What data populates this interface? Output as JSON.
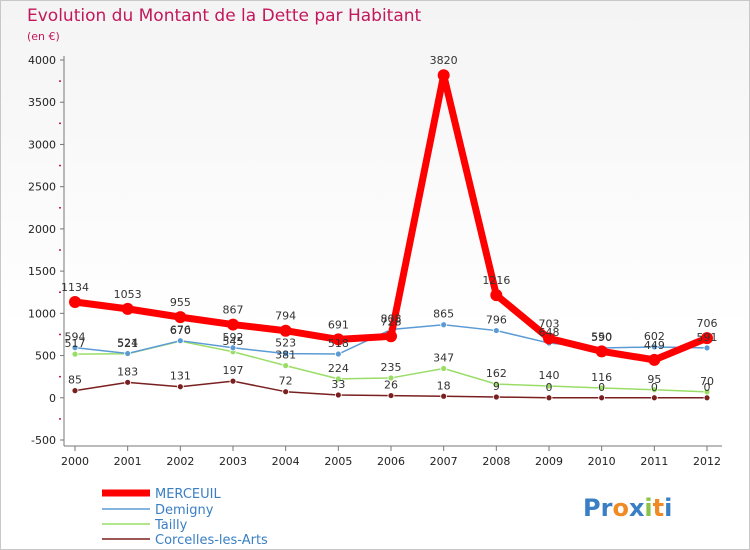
{
  "chart_data": {
    "type": "line",
    "title": "Evolution du Montant de la Dette par Habitant",
    "subtitle": "(en €)",
    "categories": [
      "2000",
      "2001",
      "2002",
      "2003",
      "2004",
      "2005",
      "2006",
      "2007",
      "2008",
      "2009",
      "2010",
      "2011",
      "2012"
    ],
    "y_ticks": [
      "-500",
      "0",
      "500",
      "1000",
      "1500",
      "2000",
      "2500",
      "3000",
      "3500",
      "4000"
    ],
    "ylim": [
      -500,
      4000
    ],
    "series": [
      {
        "name": "MERCEUIL",
        "color": "#ff0000",
        "values": [
          1134,
          1053,
          955,
          867,
          794,
          691,
          728,
          3820,
          1216,
          703,
          550,
          449,
          706
        ],
        "labels": [
          "1134",
          "1053",
          "955",
          "867",
          "794",
          "691",
          "728",
          "3820",
          "1216",
          "703",
          "550",
          "449",
          "706"
        ]
      },
      {
        "name": "Demigny",
        "color": "#5b9bd5",
        "values": [
          594,
          524,
          676,
          592,
          523,
          518,
          808,
          865,
          796,
          648,
          590,
          602,
          591
        ],
        "labels": [
          "594",
          "524",
          "676",
          "592",
          "523",
          "518",
          "808",
          "865",
          "796",
          "648",
          "590",
          "602",
          "591"
        ]
      },
      {
        "name": "Tailly",
        "color": "#99dd66",
        "values": [
          517,
          521,
          670,
          545,
          381,
          224,
          235,
          347,
          162,
          140,
          116,
          95,
          70
        ],
        "labels": [
          "517",
          "521",
          "670",
          "545",
          "381",
          "224",
          "235",
          "347",
          "162",
          "140",
          "116",
          "95",
          "70"
        ]
      },
      {
        "name": "Corcelles-les-Arts",
        "color": "#7a1f1f",
        "values": [
          85,
          183,
          131,
          197,
          72,
          33,
          26,
          18,
          9,
          0,
          0,
          0,
          0
        ],
        "labels": [
          "85",
          "183",
          "131",
          "197",
          "72",
          "33",
          "26",
          "18",
          "9",
          "0",
          "0",
          "0",
          "0"
        ]
      }
    ]
  },
  "logo": {
    "text": "Proxiti",
    "letters": [
      {
        "ch": "P",
        "color": "#3a7fc4"
      },
      {
        "ch": "r",
        "color": "#3a7fc4"
      },
      {
        "ch": "o",
        "color": "#f08a24"
      },
      {
        "ch": "x",
        "color": "#3a7fc4"
      },
      {
        "ch": "i",
        "color": "#8bc34a"
      },
      {
        "ch": "t",
        "color": "#f08a24"
      },
      {
        "ch": "i",
        "color": "#3a7fc4"
      }
    ]
  }
}
